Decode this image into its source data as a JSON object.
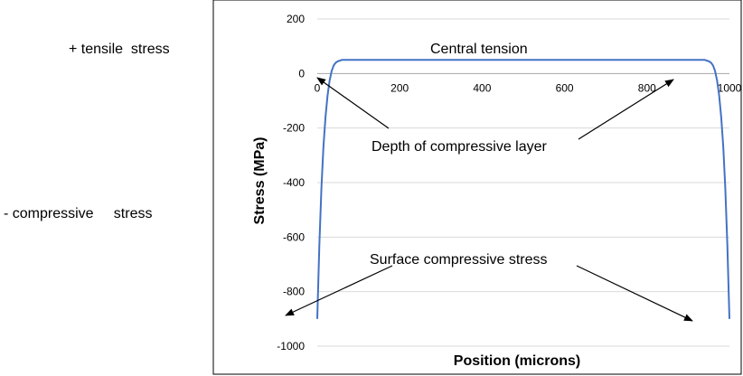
{
  "side_labels": {
    "tensile": "+ tensile  stress",
    "compressive": "- compressive     stress"
  },
  "chart_data": {
    "type": "line",
    "title": "",
    "xlabel": "Position (microns)",
    "ylabel": "Stress (MPa)",
    "xlim": [
      0,
      1000
    ],
    "ylim": [
      -1000,
      200
    ],
    "x_ticks": [
      0,
      200,
      400,
      600,
      800,
      1000
    ],
    "y_ticks": [
      200,
      0,
      -200,
      -400,
      -600,
      -800,
      -1000
    ],
    "grid": "horizontal",
    "legend": "none",
    "line_color": "#4472C4",
    "series": [
      {
        "x": [
          0,
          5,
          10,
          15,
          20,
          25,
          30,
          35,
          40,
          45,
          50,
          60,
          70,
          80,
          100,
          200,
          400,
          600,
          800,
          900,
          920,
          930,
          940,
          950,
          955,
          960,
          965,
          970,
          975,
          980,
          985,
          990,
          995,
          1000
        ],
        "values": [
          -900,
          -630,
          -420,
          -270,
          -160,
          -80,
          -25,
          10,
          30,
          40,
          45,
          50,
          50,
          50,
          50,
          50,
          50,
          50,
          50,
          50,
          50,
          50,
          50,
          45,
          40,
          30,
          10,
          -25,
          -80,
          -160,
          -270,
          -420,
          -630,
          -900
        ]
      }
    ],
    "annotations": [
      {
        "text": "Central tension"
      },
      {
        "text": "Depth of compressive layer"
      },
      {
        "text": "Surface compressive stress"
      }
    ]
  }
}
